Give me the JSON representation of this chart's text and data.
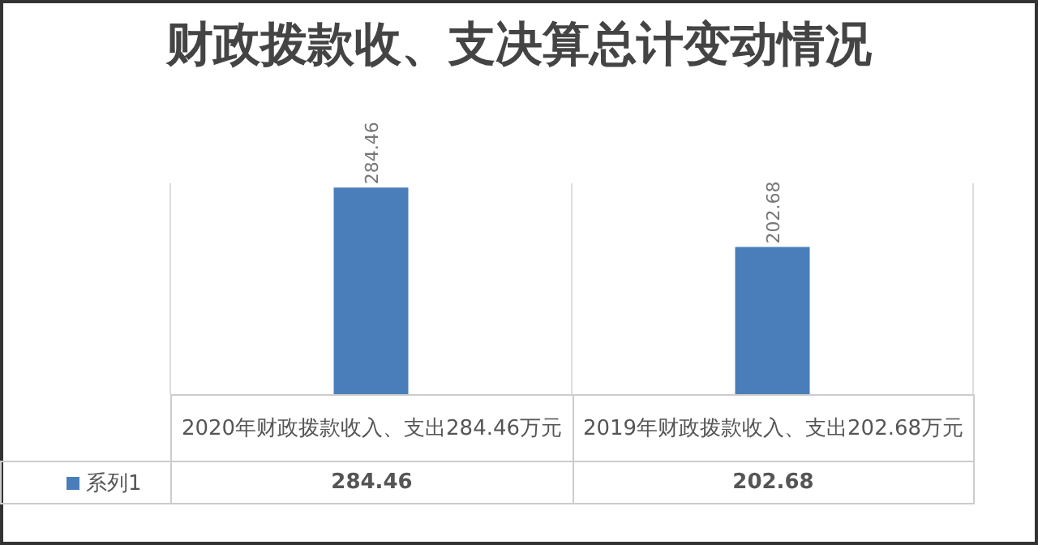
{
  "chart_data": {
    "type": "bar",
    "title": "财政拨款收、支决算总计变动情况",
    "categories": [
      "2020年财政拨款收入、支出284.46万元",
      "2019年财政拨款收入、支出202.68万元"
    ],
    "series": [
      {
        "name": "系列1",
        "color": "#4a7ebb",
        "values": [
          284.46,
          202.68
        ],
        "value_labels": [
          "284.46",
          "202.68"
        ]
      }
    ],
    "legend": "bottom"
  }
}
